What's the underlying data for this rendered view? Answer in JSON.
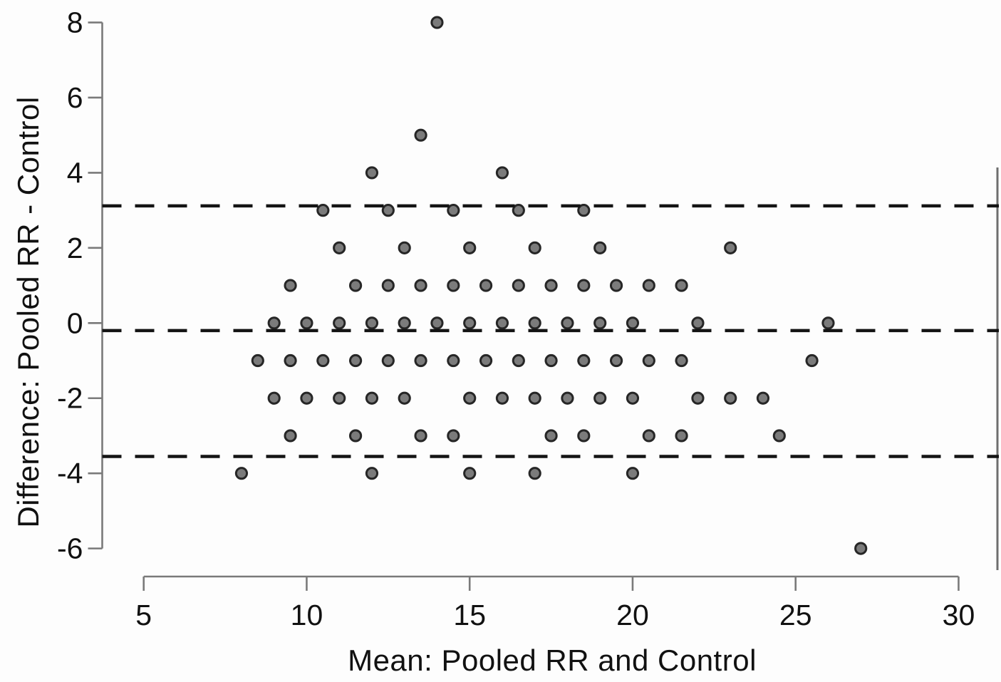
{
  "figure": {
    "kind": "bland-altman-scatter"
  },
  "chart_data": {
    "type": "scatter",
    "title": "",
    "xlabel": "Mean: Pooled RR and Control",
    "ylabel": "Difference: Pooled RR - Control",
    "xlim": [
      3.7,
      31.3
    ],
    "ylim": [
      -6.9,
      8.4
    ],
    "x_ticks": [
      5,
      10,
      15,
      20,
      25,
      30
    ],
    "y_ticks": [
      8,
      6,
      4,
      2,
      0,
      -2,
      -4,
      -6
    ],
    "grid": false,
    "legend": false,
    "axis_color": "#7a7a7a",
    "text_color": "#111111",
    "marker": {
      "shape": "circle",
      "fill": "#7b7b7b",
      "stroke": "#262626"
    },
    "reference_line_color": "#141414",
    "reference_lines": [
      {
        "name": "upper-limit-of-agreement",
        "y": 3.12,
        "style": "dashed"
      },
      {
        "name": "mean-difference",
        "y": -0.2,
        "style": "dashed"
      },
      {
        "name": "lower-limit-of-agreement",
        "y": -3.55,
        "style": "dashed"
      }
    ],
    "points": [
      [
        14,
        8
      ],
      [
        13.5,
        5
      ],
      [
        12,
        4
      ],
      [
        16,
        4
      ],
      [
        10.5,
        3
      ],
      [
        12.5,
        3
      ],
      [
        14.5,
        3
      ],
      [
        16.5,
        3
      ],
      [
        18.5,
        3
      ],
      [
        11,
        2
      ],
      [
        13,
        2
      ],
      [
        15,
        2
      ],
      [
        17,
        2
      ],
      [
        19,
        2
      ],
      [
        23,
        2
      ],
      [
        9.5,
        1
      ],
      [
        11.5,
        1
      ],
      [
        12.5,
        1
      ],
      [
        13.5,
        1
      ],
      [
        14.5,
        1
      ],
      [
        15.5,
        1
      ],
      [
        16.5,
        1
      ],
      [
        17.5,
        1
      ],
      [
        18.5,
        1
      ],
      [
        19.5,
        1
      ],
      [
        20.5,
        1
      ],
      [
        21.5,
        1
      ],
      [
        9,
        0
      ],
      [
        10,
        0
      ],
      [
        11,
        0
      ],
      [
        12,
        0
      ],
      [
        13,
        0
      ],
      [
        14,
        0
      ],
      [
        15,
        0
      ],
      [
        16,
        0
      ],
      [
        17,
        0
      ],
      [
        18,
        0
      ],
      [
        19,
        0
      ],
      [
        20,
        0
      ],
      [
        22,
        0
      ],
      [
        26,
        0
      ],
      [
        8.5,
        -1
      ],
      [
        9.5,
        -1
      ],
      [
        10.5,
        -1
      ],
      [
        11.5,
        -1
      ],
      [
        12.5,
        -1
      ],
      [
        13.5,
        -1
      ],
      [
        14.5,
        -1
      ],
      [
        15.5,
        -1
      ],
      [
        16.5,
        -1
      ],
      [
        17.5,
        -1
      ],
      [
        18.5,
        -1
      ],
      [
        19.5,
        -1
      ],
      [
        20.5,
        -1
      ],
      [
        21.5,
        -1
      ],
      [
        25.5,
        -1
      ],
      [
        9,
        -2
      ],
      [
        10,
        -2
      ],
      [
        11,
        -2
      ],
      [
        12,
        -2
      ],
      [
        13,
        -2
      ],
      [
        15,
        -2
      ],
      [
        16,
        -2
      ],
      [
        17,
        -2
      ],
      [
        18,
        -2
      ],
      [
        19,
        -2
      ],
      [
        20,
        -2
      ],
      [
        22,
        -2
      ],
      [
        23,
        -2
      ],
      [
        24,
        -2
      ],
      [
        9.5,
        -3
      ],
      [
        11.5,
        -3
      ],
      [
        13.5,
        -3
      ],
      [
        14.5,
        -3
      ],
      [
        17.5,
        -3
      ],
      [
        18.5,
        -3
      ],
      [
        20.5,
        -3
      ],
      [
        21.5,
        -3
      ],
      [
        24.5,
        -3
      ],
      [
        8,
        -4
      ],
      [
        12,
        -4
      ],
      [
        15,
        -4
      ],
      [
        17,
        -4
      ],
      [
        20,
        -4
      ],
      [
        27,
        -6
      ]
    ]
  }
}
